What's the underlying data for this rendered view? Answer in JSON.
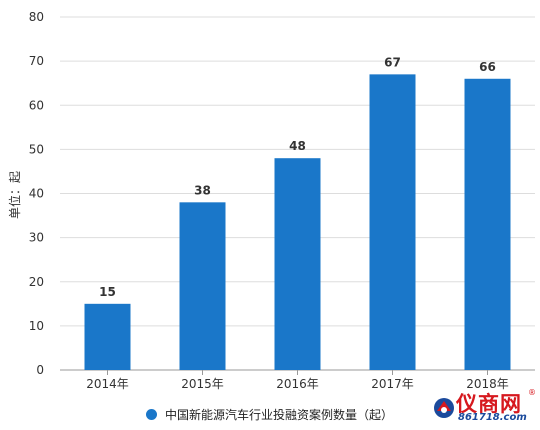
{
  "chart_data": {
    "type": "bar",
    "categories": [
      "2014年",
      "2015年",
      "2016年",
      "2017年",
      "2018年"
    ],
    "series": [
      {
        "name": "中国新能源汽车行业投融资案例数量（起）",
        "values": [
          15,
          38,
          48,
          67,
          66
        ],
        "color": "#1a77c9"
      }
    ],
    "ylabel": "单位：起",
    "ylim": [
      0,
      80
    ],
    "yticks": [
      0,
      10,
      20,
      30,
      40,
      50,
      60,
      70,
      80
    ],
    "grid": true,
    "legend": "bottom",
    "data_labels": true
  },
  "watermark": {
    "logo_text": "仪商网",
    "logo_url_text": "861718.com",
    "logo_registered": "®"
  }
}
